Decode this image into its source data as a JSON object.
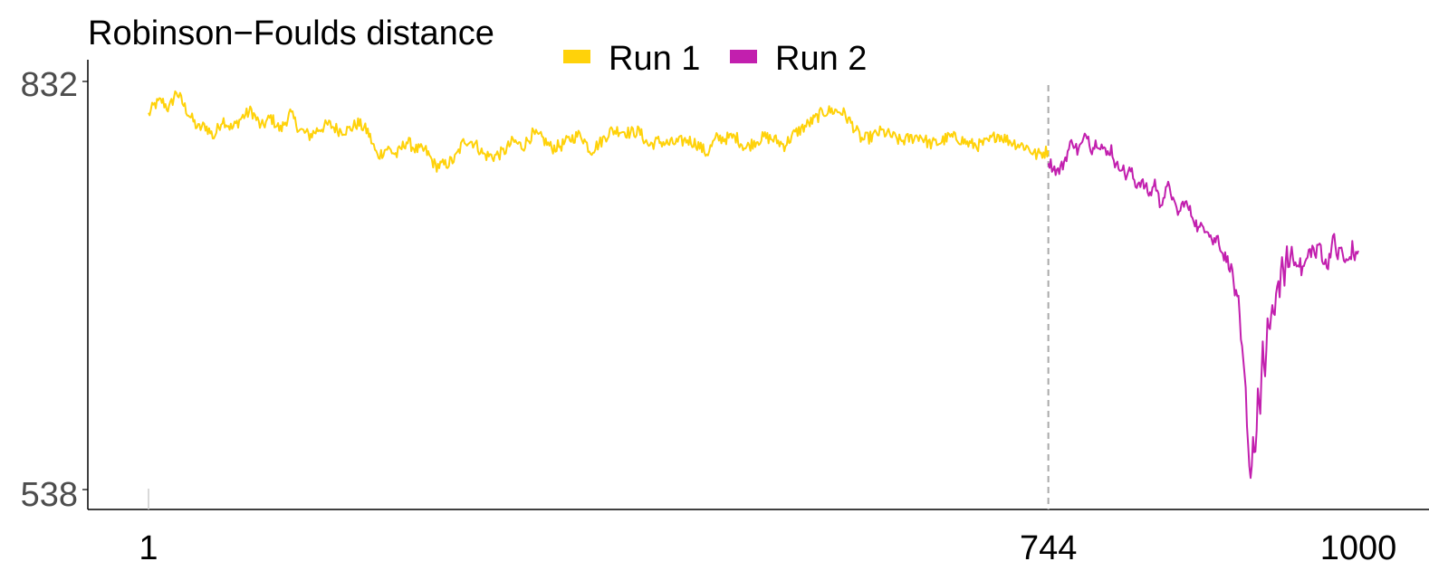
{
  "chart_data": {
    "type": "line",
    "title": "Robinson−Foulds distance",
    "xlabel": "",
    "ylabel": "",
    "xlim": [
      1,
      1000
    ],
    "ylim": [
      538,
      832
    ],
    "x_ticks": [
      "1",
      "744",
      "1000"
    ],
    "y_ticks": [
      "832",
      "538"
    ],
    "vline_x": 744,
    "legend_position": "top",
    "series": [
      {
        "name": "Run 1",
        "color": "#FFD20A",
        "x_range": [
          1,
          744
        ],
        "points": [
          [
            1,
            808
          ],
          [
            6,
            815
          ],
          [
            12,
            818
          ],
          [
            18,
            812
          ],
          [
            24,
            825
          ],
          [
            30,
            815
          ],
          [
            36,
            806
          ],
          [
            42,
            798
          ],
          [
            48,
            800
          ],
          [
            55,
            792
          ],
          [
            62,
            805
          ],
          [
            70,
            798
          ],
          [
            78,
            806
          ],
          [
            86,
            811
          ],
          [
            94,
            799
          ],
          [
            102,
            806
          ],
          [
            110,
            797
          ],
          [
            118,
            809
          ],
          [
            126,
            797
          ],
          [
            134,
            793
          ],
          [
            142,
            798
          ],
          [
            150,
            801
          ],
          [
            158,
            797
          ],
          [
            166,
            797
          ],
          [
            174,
            802
          ],
          [
            182,
            796
          ],
          [
            190,
            778
          ],
          [
            198,
            784
          ],
          [
            206,
            779
          ],
          [
            214,
            789
          ],
          [
            222,
            783
          ],
          [
            230,
            782
          ],
          [
            238,
            771
          ],
          [
            246,
            772
          ],
          [
            254,
            776
          ],
          [
            262,
            790
          ],
          [
            270,
            788
          ],
          [
            278,
            779
          ],
          [
            286,
            778
          ],
          [
            294,
            781
          ],
          [
            302,
            789
          ],
          [
            310,
            785
          ],
          [
            318,
            794
          ],
          [
            326,
            791
          ],
          [
            334,
            784
          ],
          [
            342,
            786
          ],
          [
            350,
            791
          ],
          [
            358,
            794
          ],
          [
            366,
            782
          ],
          [
            374,
            788
          ],
          [
            382,
            796
          ],
          [
            390,
            797
          ],
          [
            398,
            795
          ],
          [
            406,
            796
          ],
          [
            414,
            786
          ],
          [
            422,
            789
          ],
          [
            430,
            787
          ],
          [
            438,
            788
          ],
          [
            446,
            790
          ],
          [
            454,
            787
          ],
          [
            462,
            780
          ],
          [
            470,
            791
          ],
          [
            478,
            791
          ],
          [
            486,
            792
          ],
          [
            494,
            784
          ],
          [
            502,
            789
          ],
          [
            510,
            792
          ],
          [
            518,
            790
          ],
          [
            526,
            786
          ],
          [
            534,
            794
          ],
          [
            542,
            799
          ],
          [
            550,
            804
          ],
          [
            558,
            810
          ],
          [
            566,
            811
          ],
          [
            574,
            810
          ],
          [
            582,
            801
          ],
          [
            590,
            790
          ],
          [
            598,
            792
          ],
          [
            606,
            796
          ],
          [
            614,
            793
          ],
          [
            622,
            789
          ],
          [
            630,
            791
          ],
          [
            638,
            793
          ],
          [
            646,
            787
          ],
          [
            654,
            788
          ],
          [
            662,
            792
          ],
          [
            670,
            791
          ],
          [
            678,
            787
          ],
          [
            686,
            786
          ],
          [
            694,
            788
          ],
          [
            702,
            794
          ],
          [
            710,
            790
          ],
          [
            718,
            787
          ],
          [
            726,
            785
          ],
          [
            734,
            779
          ],
          [
            744,
            782
          ]
        ]
      },
      {
        "name": "Run 2",
        "color": "#C21FAE",
        "x_range": [
          744,
          1000
        ],
        "points": [
          [
            744,
            775
          ],
          [
            748,
            770
          ],
          [
            752,
            767
          ],
          [
            756,
            772
          ],
          [
            760,
            781
          ],
          [
            764,
            790
          ],
          [
            768,
            782
          ],
          [
            772,
            787
          ],
          [
            776,
            795
          ],
          [
            780,
            783
          ],
          [
            784,
            789
          ],
          [
            788,
            786
          ],
          [
            792,
            779
          ],
          [
            796,
            784
          ],
          [
            800,
            770
          ],
          [
            804,
            772
          ],
          [
            808,
            764
          ],
          [
            812,
            768
          ],
          [
            816,
            758
          ],
          [
            820,
            760
          ],
          [
            824,
            756
          ],
          [
            828,
            750
          ],
          [
            832,
            760
          ],
          [
            836,
            744
          ],
          [
            840,
            750
          ],
          [
            844,
            758
          ],
          [
            848,
            742
          ],
          [
            852,
            737
          ],
          [
            856,
            746
          ],
          [
            860,
            740
          ],
          [
            864,
            734
          ],
          [
            868,
            725
          ],
          [
            872,
            728
          ],
          [
            876,
            726
          ],
          [
            880,
            716
          ],
          [
            884,
            720
          ],
          [
            888,
            708
          ],
          [
            892,
            703
          ],
          [
            896,
            695
          ],
          [
            898,
            680
          ],
          [
            901,
            672
          ],
          [
            903,
            645
          ],
          [
            905,
            628
          ],
          [
            907,
            608
          ],
          [
            909,
            570
          ],
          [
            911,
            545
          ],
          [
            913,
            575
          ],
          [
            915,
            560
          ],
          [
            917,
            610
          ],
          [
            919,
            590
          ],
          [
            921,
            640
          ],
          [
            923,
            620
          ],
          [
            925,
            660
          ],
          [
            927,
            648
          ],
          [
            929,
            672
          ],
          [
            931,
            665
          ],
          [
            933,
            690
          ],
          [
            935,
            680
          ],
          [
            937,
            700
          ],
          [
            939,
            690
          ],
          [
            941,
            708
          ],
          [
            943,
            698
          ],
          [
            945,
            712
          ],
          [
            947,
            700
          ],
          [
            950,
            705
          ],
          [
            953,
            696
          ],
          [
            956,
            700
          ],
          [
            959,
            708
          ],
          [
            962,
            712
          ],
          [
            965,
            706
          ],
          [
            968,
            716
          ],
          [
            971,
            704
          ],
          [
            974,
            698
          ],
          [
            977,
            711
          ],
          [
            980,
            718
          ],
          [
            983,
            706
          ],
          [
            986,
            712
          ],
          [
            989,
            700
          ],
          [
            992,
            703
          ],
          [
            995,
            712
          ],
          [
            998,
            704
          ],
          [
            1000,
            710
          ]
        ]
      }
    ]
  }
}
